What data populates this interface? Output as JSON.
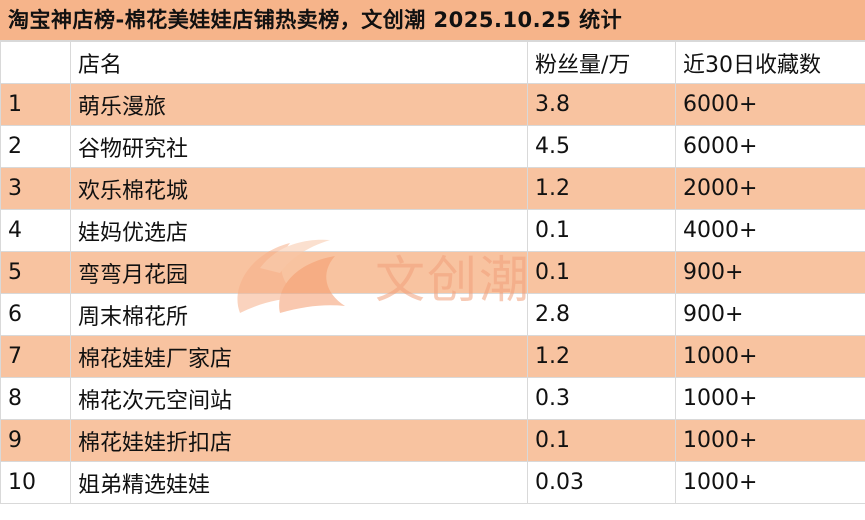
{
  "title": "淘宝神店榜-棉花美娃娃店铺热卖榜，文创潮 2025.10.25 统计",
  "columns": [
    "",
    "店名",
    "粉丝量/万",
    "近30日收藏数"
  ],
  "rows": [
    [
      "1",
      "萌乐漫旅",
      "3.8",
      "6000+"
    ],
    [
      "2",
      "谷物研究社",
      "4.5",
      "6000+"
    ],
    [
      "3",
      "欢乐棉花城",
      "1.2",
      "2000+"
    ],
    [
      "4",
      "娃妈优选店",
      "0.1",
      "4000+"
    ],
    [
      "5",
      "弯弯月花园",
      "0.1",
      "900+"
    ],
    [
      "6",
      "周末棉花所",
      "2.8",
      "900+"
    ],
    [
      "7",
      "棉花娃娃厂家店",
      "1.2",
      "1000+"
    ],
    [
      "8",
      "棉花次元空间站",
      "0.3",
      "1000+"
    ],
    [
      "9",
      "棉花娃娃折扣店",
      "0.1",
      "1000+"
    ],
    [
      "10",
      "姐弟精选娃娃",
      "0.03",
      "1000+"
    ]
  ],
  "watermark": {
    "text": "文创潮",
    "icon": "flame-logo-icon"
  },
  "colors": {
    "title_bg": "#f6b48a",
    "band_bg": "#f8c3a0",
    "watermark": "#f2a07a"
  }
}
